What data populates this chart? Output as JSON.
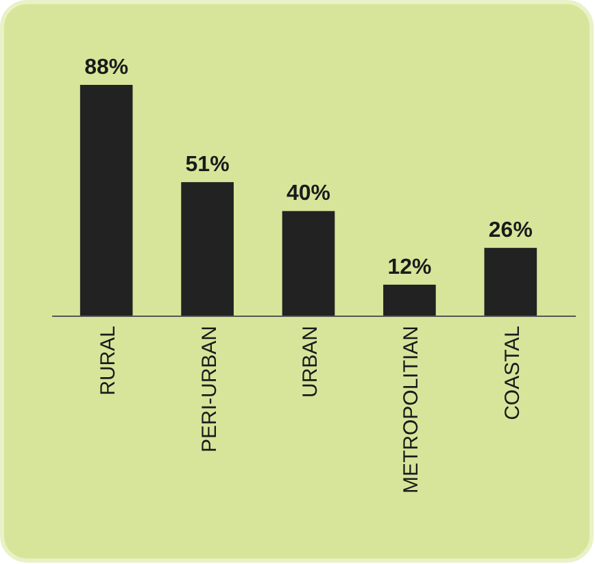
{
  "chart_data": {
    "type": "bar",
    "categories": [
      "RURAL",
      "PERI-URBAN",
      "URBAN",
      "METROPOLITIAN",
      "COASTAL"
    ],
    "values": [
      88,
      51,
      40,
      12,
      26
    ],
    "value_labels": [
      "88%",
      "51%",
      "40%",
      "12%",
      "26%"
    ],
    "color": "#222222"
  }
}
